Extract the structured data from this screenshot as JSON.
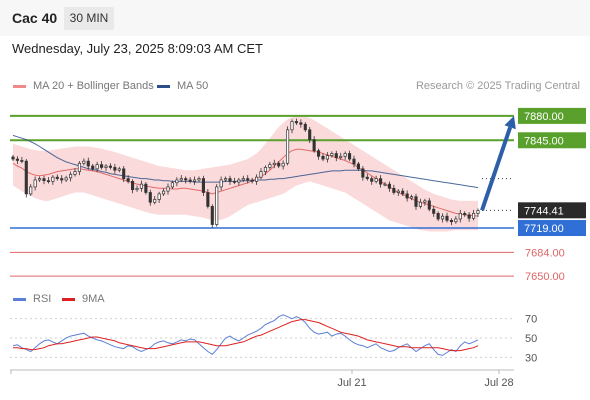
{
  "header": {
    "symbol": "Cac 40",
    "timeframe": "30 MIN",
    "datetime": "Wednesday, July 23, 2025 8:09:03 AM CET"
  },
  "legend": {
    "ma20_label": "MA 20 + Bollinger Bands",
    "ma20_color": "#f08a8a",
    "ma50_label": "MA 50",
    "ma50_color": "#2c4f8a",
    "credit": "Research © 2025 Trading Central"
  },
  "rsi_legend": {
    "rsi_label": "RSI",
    "rsi_color": "#5b7fd6",
    "ma9_label": "9MA",
    "ma9_color": "#e02020"
  },
  "chart_data": [
    {
      "type": "candlestick",
      "title": "Cac 40",
      "timeframe": "30 MIN",
      "y_range": [
        7630,
        7910
      ],
      "x_tick_labels": [
        "Jul 21",
        "Jul 28"
      ],
      "current_price": {
        "label": "7744.41",
        "value": 7744.41
      },
      "levels": [
        {
          "label": "7880.00",
          "value": 7880.0,
          "kind": "resistance",
          "color": "#5aa02c"
        },
        {
          "label": "7845.00",
          "value": 7845.0,
          "kind": "resistance",
          "color": "#5aa02c"
        },
        {
          "label": "7719.00",
          "value": 7719.0,
          "kind": "pivot",
          "color": "#2f6fd6"
        },
        {
          "label": "7684.00",
          "value": 7684.0,
          "kind": "support",
          "color": "#e06666"
        },
        {
          "label": "7650.00",
          "value": 7650.0,
          "kind": "support",
          "color": "#e06666"
        }
      ],
      "forecast_arrow": {
        "from": 7744.41,
        "to": 7880.0,
        "direction": "up",
        "color": "#2c5fa8"
      },
      "close_series": [
        7818,
        7816,
        7815,
        7768,
        7778,
        7788,
        7790,
        7787,
        7786,
        7792,
        7790,
        7788,
        7791,
        7796,
        7800,
        7812,
        7815,
        7808,
        7804,
        7810,
        7806,
        7808,
        7806,
        7802,
        7804,
        7790,
        7786,
        7774,
        7776,
        7782,
        7770,
        7756,
        7760,
        7768,
        7772,
        7778,
        7784,
        7788,
        7790,
        7788,
        7786,
        7788,
        7790,
        7770,
        7750,
        7724,
        7778,
        7788,
        7790,
        7786,
        7785,
        7788,
        7790,
        7788,
        7786,
        7792,
        7800,
        7806,
        7810,
        7812,
        7808,
        7812,
        7860,
        7872,
        7870,
        7868,
        7860,
        7846,
        7830,
        7822,
        7818,
        7823,
        7826,
        7820,
        7822,
        7826,
        7818,
        7811,
        7804,
        7792,
        7790,
        7786,
        7790,
        7782,
        7782,
        7776,
        7770,
        7772,
        7768,
        7762,
        7764,
        7750,
        7756,
        7758,
        7746,
        7740,
        7732,
        7736,
        7730,
        7728,
        7732,
        7740,
        7738,
        7733,
        7740,
        7744
      ],
      "ma20": [
        7812,
        7808,
        7805,
        7800,
        7797,
        7795,
        7794,
        7795,
        7796,
        7798,
        7800,
        7801,
        7802,
        7803,
        7804,
        7804,
        7803,
        7802,
        7801,
        7800,
        7798,
        7796,
        7794,
        7792,
        7790,
        7788,
        7786,
        7784,
        7782,
        7781,
        7779,
        7778,
        7777,
        7776,
        7776,
        7776,
        7775,
        7775,
        7776,
        7776,
        7775,
        7774,
        7773,
        7772,
        7770,
        7768,
        7770,
        7772,
        7774,
        7776,
        7778,
        7780,
        7782,
        7784,
        7787,
        7790,
        7793,
        7797,
        7802,
        7808,
        7814,
        7820,
        7826,
        7830,
        7832,
        7832,
        7831,
        7830,
        7829,
        7828,
        7826,
        7824,
        7822,
        7820,
        7818,
        7816,
        7813,
        7810,
        7806,
        7802,
        7798,
        7794,
        7790,
        7786,
        7782,
        7778,
        7774,
        7770,
        7767,
        7764,
        7761,
        7758,
        7756,
        7754,
        7752,
        7750,
        7748,
        7746,
        7744,
        7742,
        7740,
        7739,
        7738,
        7737,
        7737,
        7736
      ],
      "ma50": [
        7852,
        7850,
        7848,
        7846,
        7843,
        7840,
        7836,
        7832,
        7828,
        7824,
        7820,
        7817,
        7814,
        7812,
        7810,
        7808,
        7806,
        7804,
        7803,
        7802,
        7800,
        7799,
        7797,
        7796,
        7795,
        7794,
        7793,
        7792,
        7791,
        7790,
        7790,
        7789,
        7788,
        7788,
        7787,
        7787,
        7786,
        7786,
        7786,
        7786,
        7786,
        7785,
        7785,
        7785,
        7785,
        7785,
        7785,
        7785,
        7786,
        7786,
        7786,
        7786,
        7787,
        7787,
        7787,
        7788,
        7788,
        7788,
        7789,
        7789,
        7790,
        7790,
        7791,
        7792,
        7793,
        7794,
        7795,
        7796,
        7797,
        7798,
        7799,
        7800,
        7801,
        7801,
        7801,
        7802,
        7802,
        7802,
        7802,
        7802,
        7801,
        7801,
        7800,
        7799,
        7798,
        7797,
        7796,
        7795,
        7794,
        7793,
        7792,
        7791,
        7790,
        7789,
        7788,
        7787,
        7786,
        7785,
        7784,
        7783,
        7782,
        7781,
        7780,
        7779,
        7778,
        7777
      ],
      "bollinger_upper": [
        7840,
        7838,
        7836,
        7834,
        7832,
        7831,
        7830,
        7830,
        7830,
        7831,
        7832,
        7833,
        7834,
        7835,
        7836,
        7836,
        7836,
        7836,
        7835,
        7834,
        7833,
        7831,
        7830,
        7828,
        7826,
        7824,
        7822,
        7820,
        7818,
        7816,
        7814,
        7812,
        7810,
        7808,
        7807,
        7806,
        7805,
        7804,
        7803,
        7802,
        7802,
        7802,
        7803,
        7804,
        7805,
        7806,
        7807,
        7808,
        7809,
        7810,
        7812,
        7814,
        7816,
        7818,
        7822,
        7826,
        7832,
        7840,
        7848,
        7856,
        7864,
        7870,
        7875,
        7878,
        7880,
        7880,
        7879,
        7877,
        7874,
        7870,
        7866,
        7862,
        7858,
        7854,
        7850,
        7846,
        7842,
        7838,
        7834,
        7830,
        7826,
        7822,
        7818,
        7814,
        7810,
        7806,
        7802,
        7798,
        7794,
        7790,
        7786,
        7782,
        7778,
        7774,
        7771,
        7768,
        7766,
        7764,
        7762,
        7760,
        7759,
        7758,
        7758,
        7758,
        7758,
        7758
      ],
      "bollinger_lower": [
        7780,
        7776,
        7772,
        7768,
        7765,
        7762,
        7760,
        7758,
        7758,
        7760,
        7762,
        7764,
        7766,
        7768,
        7770,
        7770,
        7770,
        7768,
        7766,
        7764,
        7762,
        7760,
        7758,
        7756,
        7754,
        7752,
        7750,
        7748,
        7746,
        7744,
        7742,
        7740,
        7739,
        7738,
        7738,
        7738,
        7738,
        7738,
        7738,
        7738,
        7737,
        7736,
        7735,
        7734,
        7732,
        7730,
        7730,
        7731,
        7733,
        7736,
        7740,
        7744,
        7748,
        7752,
        7754,
        7756,
        7758,
        7760,
        7762,
        7764,
        7766,
        7768,
        7772,
        7776,
        7780,
        7782,
        7784,
        7786,
        7784,
        7782,
        7780,
        7778,
        7776,
        7774,
        7772,
        7770,
        7766,
        7762,
        7758,
        7754,
        7750,
        7746,
        7742,
        7738,
        7734,
        7730,
        7728,
        7726,
        7724,
        7722,
        7720,
        7718,
        7716,
        7715,
        7714,
        7714,
        7714,
        7714,
        7714,
        7715,
        7716,
        7716,
        7716,
        7716,
        7716,
        7716
      ]
    },
    {
      "type": "line",
      "title": "RSI",
      "y_range": [
        20,
        80
      ],
      "y_tick_labels": [
        "70",
        "50",
        "30"
      ],
      "series": [
        {
          "name": "RSI",
          "values": [
            42,
            43,
            40,
            38,
            36,
            40,
            44,
            47,
            48,
            46,
            44,
            47,
            50,
            52,
            53,
            54,
            55,
            52,
            50,
            48,
            47,
            45,
            43,
            41,
            40,
            39,
            42,
            41,
            38,
            36,
            38,
            40,
            44,
            46,
            47,
            45,
            44,
            46,
            48,
            47,
            49,
            48,
            44,
            40,
            36,
            33,
            38,
            44,
            50,
            52,
            49,
            47,
            50,
            53,
            55,
            57,
            60,
            64,
            66,
            68,
            72,
            74,
            72,
            70,
            72,
            70,
            66,
            60,
            56,
            54,
            55,
            56,
            52,
            54,
            55,
            52,
            48,
            45,
            43,
            42,
            40,
            42,
            44,
            40,
            38,
            36,
            37,
            40,
            42,
            44,
            40,
            36,
            39,
            42,
            44,
            38,
            33,
            32,
            35,
            38,
            36,
            42,
            46,
            44,
            46,
            48
          ]
        },
        {
          "name": "9MA",
          "values": [
            40,
            40,
            39,
            39,
            38,
            38,
            39,
            40,
            42,
            43,
            44,
            44,
            45,
            46,
            47,
            48,
            49,
            50,
            51,
            51,
            50,
            49,
            48,
            47,
            45,
            44,
            43,
            42,
            41,
            40,
            39,
            39,
            39,
            40,
            41,
            42,
            43,
            44,
            45,
            46,
            46,
            46,
            46,
            45,
            44,
            43,
            42,
            42,
            42,
            43,
            44,
            45,
            46,
            48,
            50,
            52,
            53,
            55,
            57,
            59,
            61,
            63,
            65,
            67,
            68,
            69,
            69,
            68,
            67,
            66,
            64,
            62,
            60,
            58,
            56,
            55,
            54,
            53,
            52,
            50,
            48,
            47,
            46,
            45,
            44,
            43,
            42,
            41,
            41,
            41,
            40,
            40,
            40,
            40,
            40,
            40,
            40,
            39,
            38,
            37,
            37,
            37,
            38,
            39,
            40,
            42
          ]
        }
      ]
    }
  ]
}
